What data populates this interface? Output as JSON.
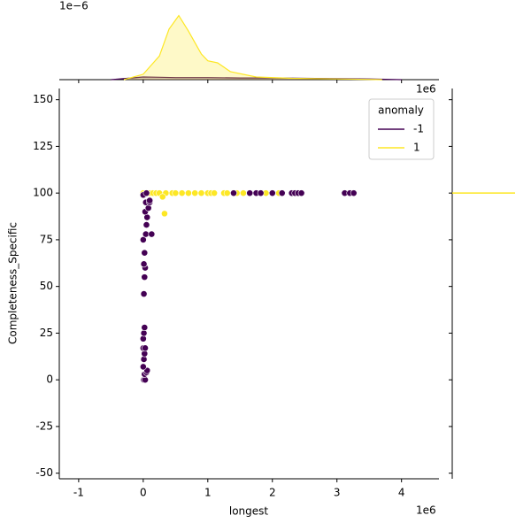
{
  "chart_data": [
    {
      "type": "scatter",
      "xlabel": "longest",
      "ylabel": "Completeness_Specific",
      "x_offset": "1e6",
      "xlim": [
        -1.3,
        4.58
      ],
      "ylim": [
        -53,
        156
      ],
      "xticks": [
        -1,
        0,
        1,
        2,
        3,
        4
      ],
      "yticks": [
        -50,
        -25,
        0,
        25,
        50,
        75,
        100,
        125,
        150
      ],
      "legend_title": "anomaly",
      "legend": "upper right",
      "series": [
        {
          "name": "-1",
          "color": "#440154",
          "x": [
            0.01,
            0.03,
            0.02,
            0.05,
            0.06,
            0.0,
            0.01,
            0.02,
            0.0,
            0.03,
            0.0,
            0.01,
            0.02,
            0.01,
            0.02,
            0.03,
            0.01,
            0.02,
            0.0,
            0.04,
            0.13,
            0.05,
            0.06,
            0.03,
            0.08,
            0.04,
            0.1,
            0.0,
            0.05,
            0.1,
            1.4,
            1.65,
            1.75,
            1.82,
            2.0,
            2.15,
            2.3,
            2.35,
            2.4,
            2.45,
            3.12,
            3.2,
            3.26
          ],
          "values": [
            0,
            0,
            3,
            4,
            5,
            7,
            11,
            14,
            17,
            17,
            22,
            25,
            28,
            46,
            55,
            60,
            62,
            68,
            75,
            78,
            78,
            83,
            87,
            90,
            92,
            95,
            95,
            99,
            100,
            96,
            100,
            100,
            100,
            100,
            100,
            100,
            100,
            100,
            100,
            100,
            100,
            100,
            100
          ]
        },
        {
          "name": "1",
          "color": "#fde725",
          "x": [
            0.0,
            0.05,
            0.1,
            0.15,
            0.2,
            0.25,
            0.35,
            0.45,
            0.5,
            0.6,
            0.7,
            0.8,
            0.9,
            1.0,
            1.05,
            1.1,
            1.25,
            1.3,
            1.45,
            1.55,
            1.9,
            2.1,
            0.3,
            0.33
          ],
          "values": [
            100,
            100,
            100,
            100,
            100,
            100,
            100,
            100,
            100,
            100,
            100,
            100,
            100,
            100,
            100,
            100,
            100,
            100,
            100,
            100,
            100,
            100,
            98,
            89
          ]
        }
      ]
    },
    {
      "type": "kde",
      "x_offset": "1e6",
      "y_offset": "1e−6",
      "ylim": [
        0,
        1.05
      ],
      "series": [
        {
          "color": "#440154",
          "x": [
            -0.5,
            -0.25,
            0,
            0.25,
            0.5,
            1,
            1.5,
            2,
            2.5,
            3,
            3.5,
            4
          ],
          "values": [
            0.0,
            0.02,
            0.04,
            0.035,
            0.03,
            0.03,
            0.025,
            0.025,
            0.02,
            0.015,
            0.01,
            0.0
          ]
        },
        {
          "color": "#fde725",
          "x": [
            -0.3,
            0,
            0.25,
            0.4,
            0.55,
            0.7,
            0.8,
            0.9,
            1.0,
            1.15,
            1.35,
            1.75,
            2.3,
            3.0,
            3.7
          ],
          "values": [
            0.0,
            0.08,
            0.35,
            0.75,
            0.95,
            0.72,
            0.55,
            0.38,
            0.28,
            0.25,
            0.12,
            0.04,
            0.02,
            0.01,
            0.0
          ]
        }
      ]
    },
    {
      "type": "hline",
      "series": [
        {
          "color": "#fde725",
          "y": [
            100
          ]
        }
      ]
    }
  ]
}
